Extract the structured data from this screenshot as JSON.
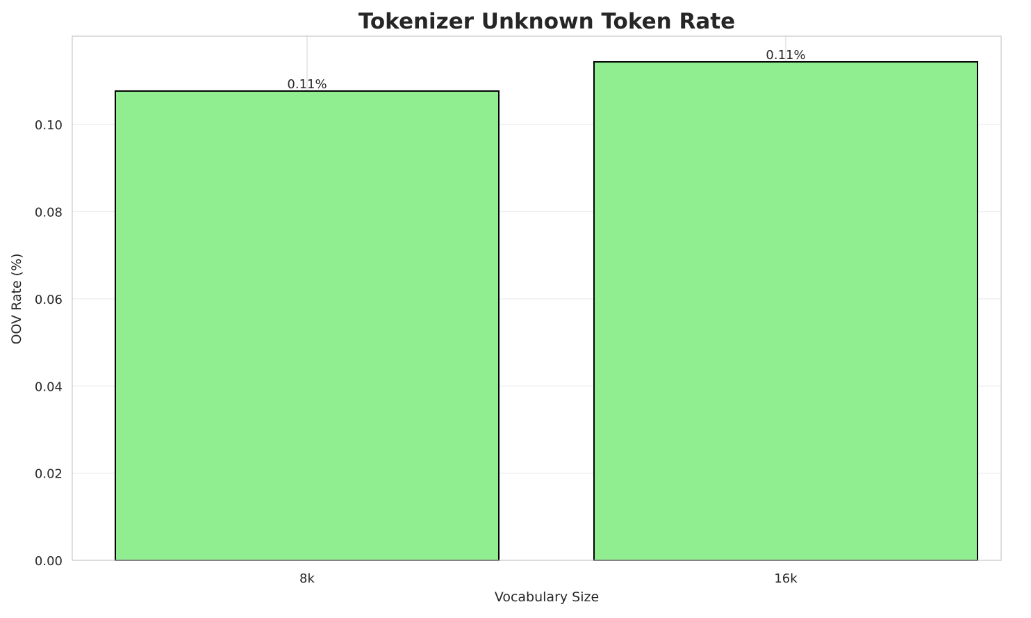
{
  "chart_data": {
    "type": "bar",
    "title": "Tokenizer Unknown Token Rate",
    "xlabel": "Vocabulary Size",
    "ylabel": "OOV Rate (%)",
    "categories": [
      "8k",
      "16k"
    ],
    "values": [
      0.1077,
      0.1144
    ],
    "data_labels": [
      "0.11%",
      "0.11%"
    ],
    "ylim": [
      0,
      0.1203
    ],
    "yticks": [
      0.0,
      0.02,
      0.04,
      0.06,
      0.08,
      0.1
    ],
    "ytick_labels": [
      "0.00",
      "0.02",
      "0.04",
      "0.06",
      "0.08",
      "0.10"
    ],
    "grid": true,
    "bar_color": "#90ee90",
    "bar_edge_color": "#000000"
  }
}
